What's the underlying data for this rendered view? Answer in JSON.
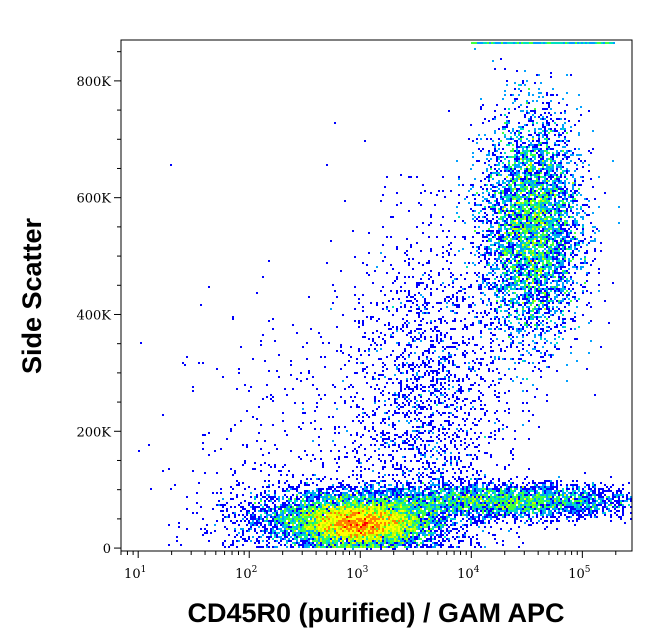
{
  "chart_data": {
    "type": "scatter",
    "plot_style": "density dot plot (flow cytometry)",
    "xlabel": "CD45R0 (purified) / GAM APC",
    "ylabel": "Side Scatter",
    "x_scale": "log",
    "xlim": [
      7,
      280000
    ],
    "ylim": [
      -5000,
      870000
    ],
    "x_ticks": [
      {
        "value": 10,
        "base": "10",
        "exp": "1"
      },
      {
        "value": 100,
        "base": "10",
        "exp": "2"
      },
      {
        "value": 1000,
        "base": "10",
        "exp": "3"
      },
      {
        "value": 10000,
        "base": "10",
        "exp": "4"
      },
      {
        "value": 100000,
        "base": "10",
        "exp": "5"
      }
    ],
    "y_ticks": [
      {
        "value": 0,
        "label": "0"
      },
      {
        "value": 200000,
        "label": "200K"
      },
      {
        "value": 400000,
        "label": "400K"
      },
      {
        "value": 600000,
        "label": "600K"
      },
      {
        "value": 800000,
        "label": "800K"
      }
    ],
    "grid": false,
    "density_colors": [
      "#0000ff",
      "#00a0ff",
      "#00e0c0",
      "#40ff40",
      "#c0ff00",
      "#ffff00",
      "#ff8000",
      "#ff0000"
    ],
    "populations": [
      {
        "x_center": 1000,
        "x_spread_decades": 0.28,
        "y_center": 40000,
        "y_spread": 18000,
        "weight": 0.3
      },
      {
        "x_center": 700,
        "x_spread_decades": 0.45,
        "y_center": 55000,
        "y_spread": 25000,
        "weight": 0.14
      },
      {
        "x_center": 35000,
        "x_spread_decades": 0.22,
        "y_center": 550000,
        "y_spread": 95000,
        "weight": 0.28
      },
      {
        "x_center": 20000,
        "x_spread_decades": 0.6,
        "y_center": 80000,
        "y_spread": 15000,
        "weight": 0.14
      },
      {
        "x_center": 4000,
        "x_spread_decades": 0.35,
        "y_center": 250000,
        "y_spread": 150000,
        "weight": 0.08
      },
      {
        "x_center": 300,
        "x_spread_decades": 0.6,
        "y_center": 120000,
        "y_spread": 150000,
        "weight": 0.02
      }
    ],
    "saturation_band": {
      "x_from": 10000,
      "x_to": 200000,
      "y": 865000
    }
  }
}
